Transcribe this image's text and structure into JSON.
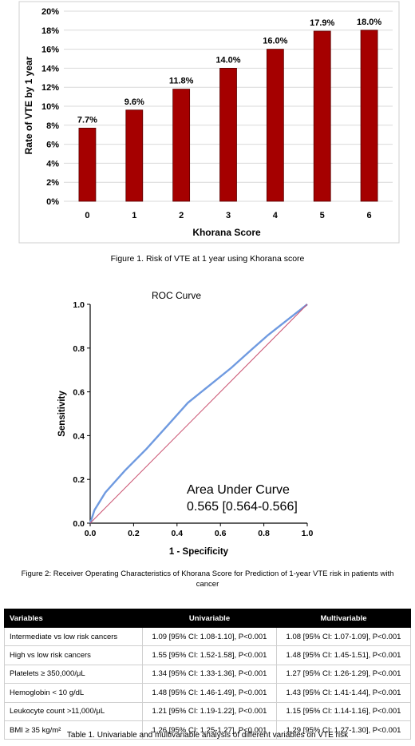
{
  "chart_data": [
    {
      "type": "bar",
      "categories": [
        "0",
        "1",
        "2",
        "3",
        "4",
        "5",
        "6"
      ],
      "values": [
        7.7,
        9.6,
        11.8,
        14.0,
        16.0,
        17.9,
        18.0
      ],
      "data_labels": [
        "7.7%",
        "9.6%",
        "11.8%",
        "14.0%",
        "16.0%",
        "17.9%",
        "18.0%"
      ],
      "xlabel": "Khorana Score",
      "ylabel": "Rate of VTE by 1 year",
      "yticks": [
        "0%",
        "2%",
        "4%",
        "6%",
        "8%",
        "10%",
        "12%",
        "14%",
        "16%",
        "18%",
        "20%"
      ],
      "ylim": [
        0,
        20
      ],
      "grid": true,
      "bar_color": "#a50000"
    },
    {
      "type": "line",
      "title": "ROC Curve",
      "xlabel": "1 - Specificity",
      "ylabel": "Sensitivity",
      "xlim": [
        0,
        1
      ],
      "ylim": [
        0,
        1
      ],
      "xticks": [
        "0.0",
        "0.2",
        "0.4",
        "0.6",
        "0.8",
        "1.0"
      ],
      "yticks": [
        "0.0",
        "0.2",
        "0.4",
        "0.6",
        "0.8",
        "1.0"
      ],
      "series": [
        {
          "color": "#6f9ae0",
          "x": [
            0,
            0.02,
            0.07,
            0.16,
            0.26,
            0.36,
            0.45,
            0.55,
            0.65,
            0.74,
            0.82,
            0.91,
            1.0
          ],
          "y": [
            0,
            0.06,
            0.14,
            0.24,
            0.34,
            0.45,
            0.55,
            0.63,
            0.71,
            0.79,
            0.86,
            0.93,
            1.0
          ]
        },
        {
          "color": "#c94f6e",
          "x": [
            0,
            1
          ],
          "y": [
            0,
            1
          ]
        }
      ],
      "annotation": [
        "Area Under Curve",
        "0.565 [0.564-0.566]"
      ]
    }
  ],
  "captions": {
    "figure1": "Figure 1. Risk of VTE at 1 year using Khorana score",
    "figure2_line1": "Figure 2: Receiver Operating Characteristics of Khorana Score for Prediction of 1-year VTE risk in patients with",
    "figure2_line2": "cancer",
    "table1": "Table 1. Univariable and multivariable analysis of different variables on VTE risk"
  },
  "table": {
    "headers": [
      "Variables",
      "Univariable",
      "Multivariable"
    ],
    "rows": [
      [
        "Intermediate vs low risk cancers",
        "1.09 [95% CI: 1.08-1.10], P<0.001",
        "1.08 [95% CI: 1.07-1.09], P<0.001"
      ],
      [
        "High vs low risk cancers",
        "1.55 [95% CI: 1.52-1.58], P<0.001",
        "1.48 [95% CI: 1.45-1.51], P<0.001"
      ],
      [
        "Platelets ≥ 350,000/μL",
        "1.34 [95% CI: 1.33-1.36], P<0.001",
        "1.27 [95% CI: 1.26-1.29], P<0.001"
      ],
      [
        "Hemoglobin < 10 g/dL",
        "1.48 [95% CI: 1.46-1.49], P<0.001",
        "1.43 [95% CI: 1.41-1.44], P<0.001"
      ],
      [
        "Leukocyte count >11,000/μL",
        "1.21 [95% CI: 1.19-1.22], P<0.001",
        "1.15 [95% CI: 1.14-1.16], P<0.001"
      ],
      [
        "BMI ≥ 35 kg/m²",
        "1.26 [95% CI: 1.25-1.27], P<0.001",
        "1.29 [95% CI: 1.27-1.30], P<0.001"
      ]
    ]
  }
}
